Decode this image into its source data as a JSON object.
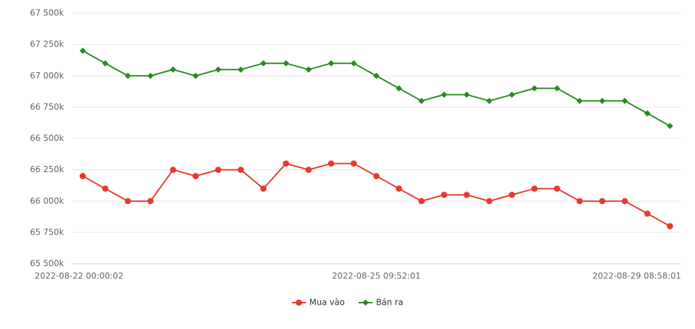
{
  "chart_data": {
    "type": "line",
    "categories": [
      "2022-08-22 00:00:02",
      null,
      null,
      null,
      null,
      null,
      null,
      null,
      null,
      null,
      null,
      null,
      null,
      "2022-08-25 09:52:01",
      null,
      null,
      null,
      null,
      null,
      null,
      null,
      null,
      null,
      null,
      null,
      null,
      "2022-08-29 08:58:01"
    ],
    "series": [
      {
        "name": "Mua vào",
        "color": "#e8392e",
        "marker": "circle",
        "values": [
          66200,
          66100,
          66000,
          66000,
          66250,
          66200,
          66250,
          66250,
          66100,
          66300,
          66250,
          66300,
          66300,
          66200,
          66100,
          66000,
          66050,
          66050,
          66000,
          66050,
          66100,
          66100,
          66000,
          66000,
          66000,
          65900,
          65800
        ]
      },
      {
        "name": "Bán ra",
        "color": "#2a8a22",
        "marker": "diamond",
        "values": [
          67200,
          67100,
          67000,
          67000,
          67050,
          67000,
          67050,
          67050,
          67100,
          67100,
          67050,
          67100,
          67100,
          67000,
          66900,
          66800,
          66850,
          66850,
          66800,
          66850,
          66900,
          66900,
          66800,
          66800,
          66800,
          66700,
          66600
        ]
      }
    ],
    "ylim": [
      65500,
      67500
    ],
    "yticks": [
      {
        "value": 65500,
        "label": "65 500k"
      },
      {
        "value": 65750,
        "label": "65 750k"
      },
      {
        "value": 66000,
        "label": "66 000k"
      },
      {
        "value": 66250,
        "label": "66 250k"
      },
      {
        "value": 66500,
        "label": "66 500k"
      },
      {
        "value": 66750,
        "label": "66 750k"
      },
      {
        "value": 67000,
        "label": "67 000k"
      },
      {
        "value": 67250,
        "label": "67 250k"
      },
      {
        "value": 67500,
        "label": "67 500k"
      }
    ],
    "grid": true,
    "legend": "bottom"
  }
}
